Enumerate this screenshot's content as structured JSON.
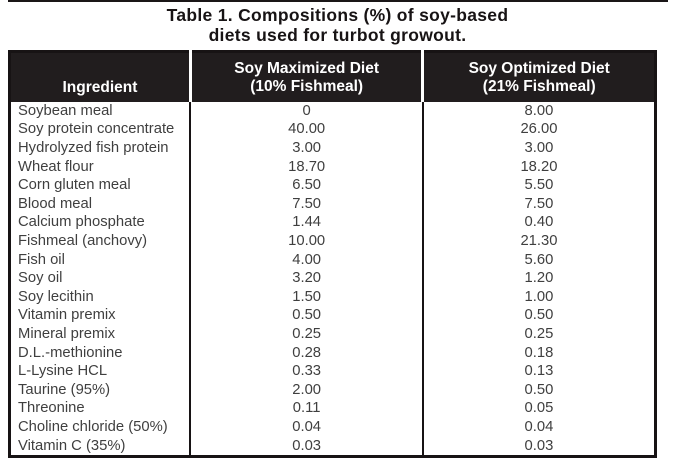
{
  "title": {
    "line1": "Table 1. Compositions (%) of soy-based",
    "line2": "diets used for turbot growout."
  },
  "table": {
    "header": {
      "ingredient": "Ingredient",
      "soy_maximized_line1": "Soy Maximized Diet",
      "soy_maximized_line2": "(10% Fishmeal)",
      "soy_optimized_line1": "Soy Optimized Diet",
      "soy_optimized_line2": "(21% Fishmeal)"
    },
    "rows": [
      {
        "ingredient": "Soybean meal",
        "soy_maximized": "0",
        "soy_optimized": "8.00"
      },
      {
        "ingredient": "Soy protein concentrate",
        "soy_maximized": "40.00",
        "soy_optimized": "26.00"
      },
      {
        "ingredient": "Hydrolyzed fish protein",
        "soy_maximized": "3.00",
        "soy_optimized": "3.00"
      },
      {
        "ingredient": "Wheat flour",
        "soy_maximized": "18.70",
        "soy_optimized": "18.20"
      },
      {
        "ingredient": "Corn gluten meal",
        "soy_maximized": "6.50",
        "soy_optimized": "5.50"
      },
      {
        "ingredient": "Blood meal",
        "soy_maximized": "7.50",
        "soy_optimized": "7.50"
      },
      {
        "ingredient": "Calcium phosphate",
        "soy_maximized": "1.44",
        "soy_optimized": "0.40"
      },
      {
        "ingredient": "Fishmeal (anchovy)",
        "soy_maximized": "10.00",
        "soy_optimized": "21.30"
      },
      {
        "ingredient": "Fish oil",
        "soy_maximized": "4.00",
        "soy_optimized": "5.60"
      },
      {
        "ingredient": "Soy oil",
        "soy_maximized": "3.20",
        "soy_optimized": "1.20"
      },
      {
        "ingredient": "Soy lecithin",
        "soy_maximized": "1.50",
        "soy_optimized": "1.00"
      },
      {
        "ingredient": "Vitamin premix",
        "soy_maximized": "0.50",
        "soy_optimized": "0.50"
      },
      {
        "ingredient": "Mineral premix",
        "soy_maximized": "0.25",
        "soy_optimized": "0.25"
      },
      {
        "ingredient": "D.L.-methionine",
        "soy_maximized": "0.28",
        "soy_optimized": "0.18"
      },
      {
        "ingredient": "L-Lysine HCL",
        "soy_maximized": "0.33",
        "soy_optimized": "0.13"
      },
      {
        "ingredient": "Taurine (95%)",
        "soy_maximized": "2.00",
        "soy_optimized": "0.50"
      },
      {
        "ingredient": "Threonine",
        "soy_maximized": "0.11",
        "soy_optimized": "0.05"
      },
      {
        "ingredient": "Choline chloride (50%)",
        "soy_maximized": "0.04",
        "soy_optimized": "0.04"
      },
      {
        "ingredient": "Vitamin C (35%)",
        "soy_maximized": "0.03",
        "soy_optimized": "0.03"
      }
    ]
  },
  "colors": {
    "header_bg": "#211d1e",
    "border": "#171314",
    "body_text": "#3f3f3f"
  }
}
